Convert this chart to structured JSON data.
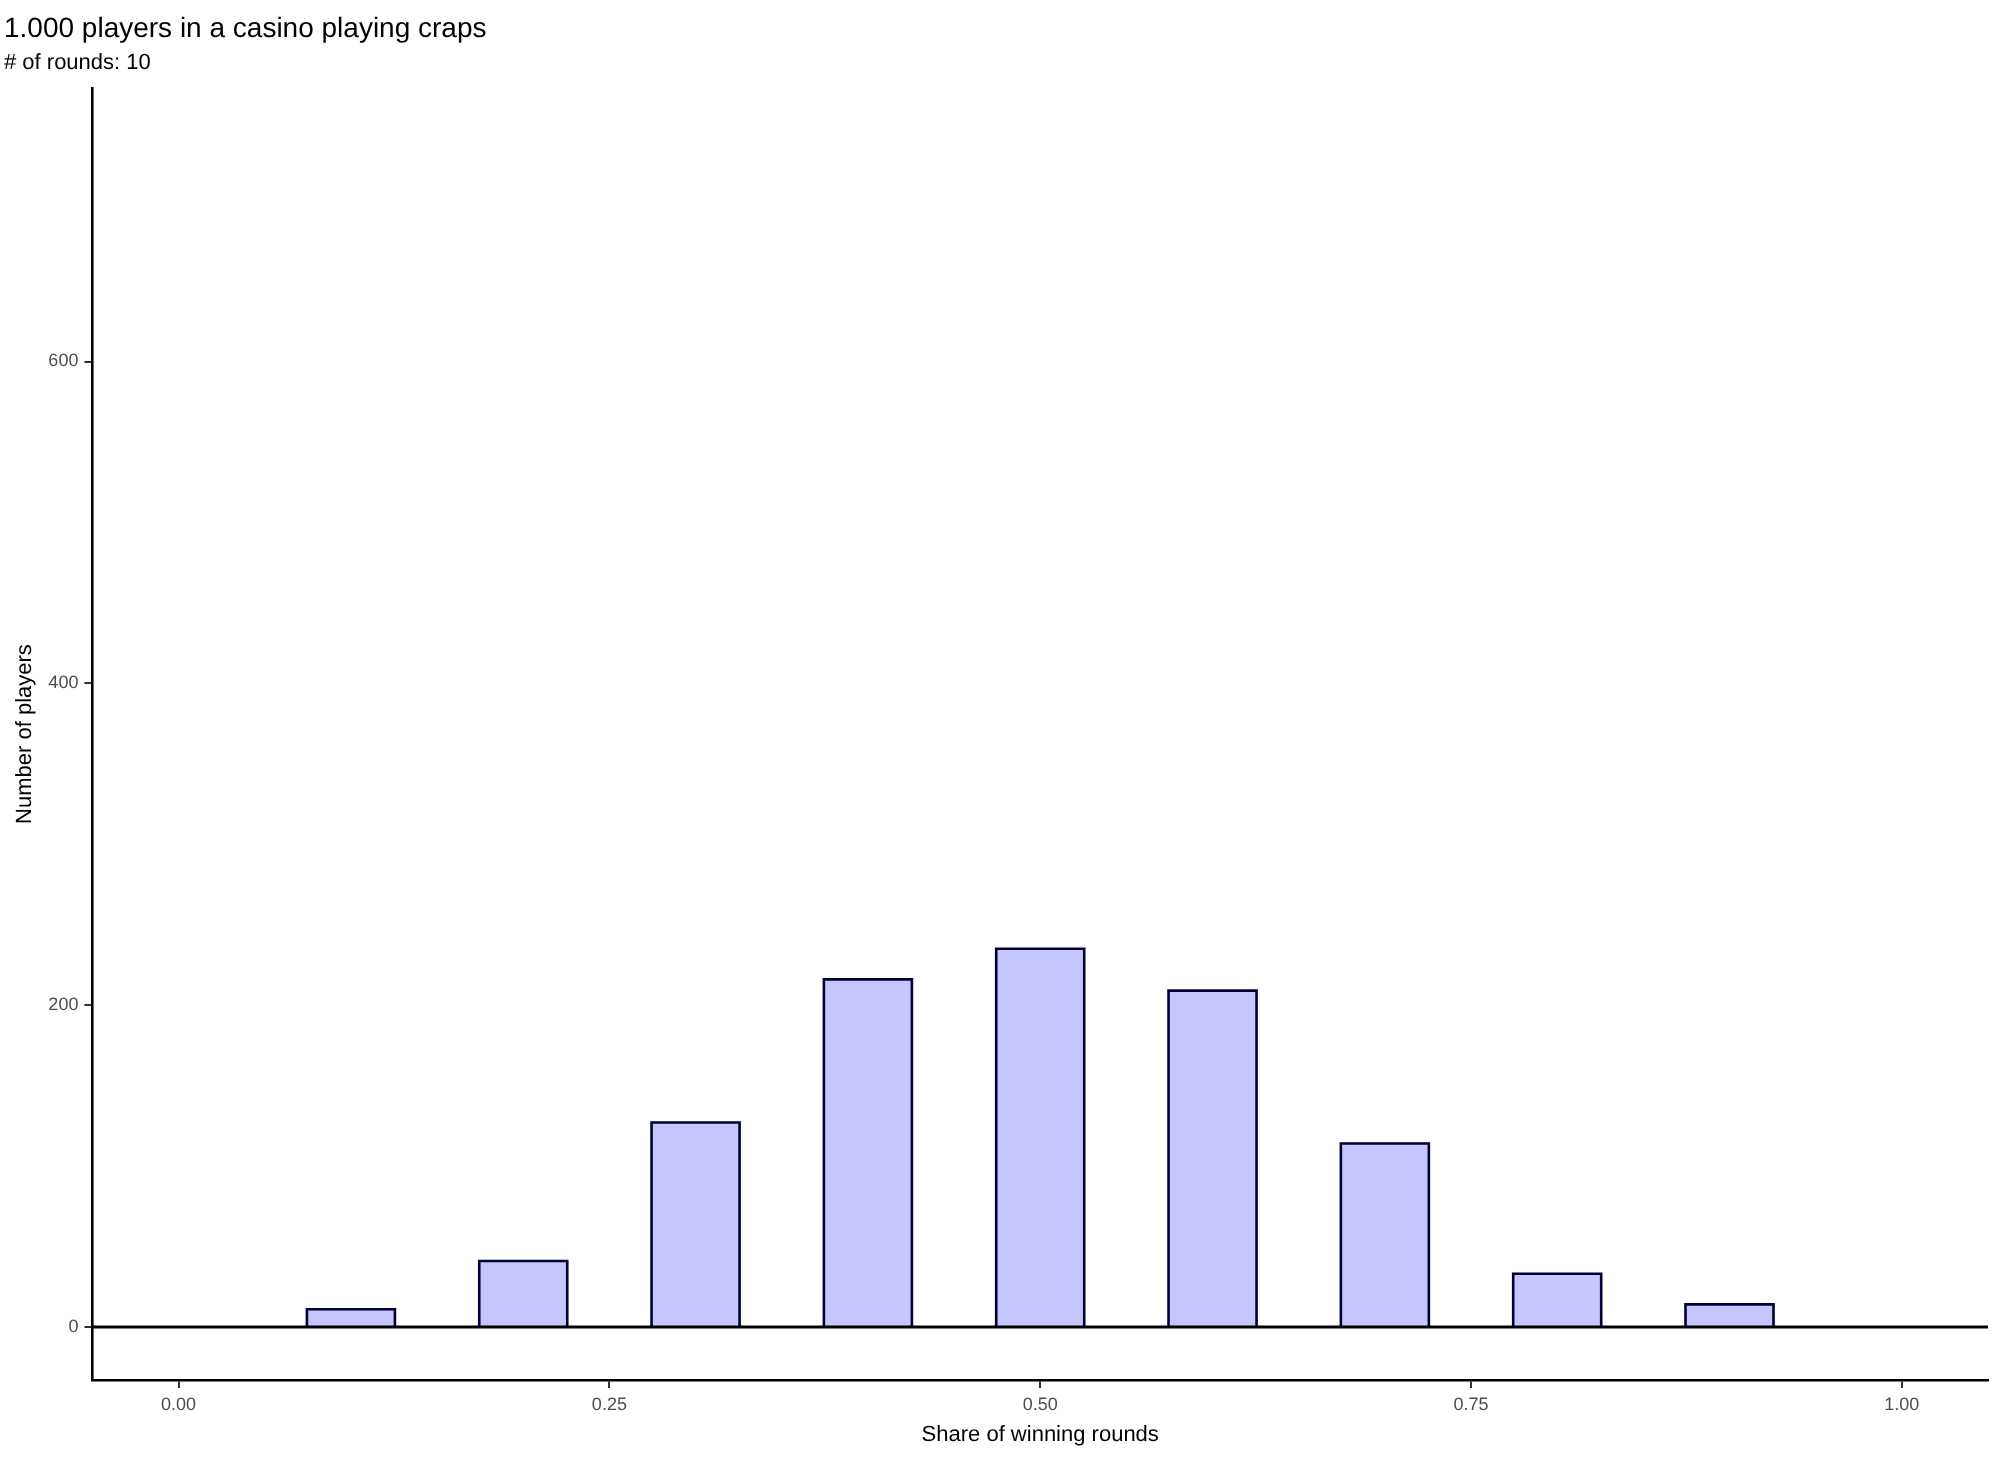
{
  "chart_data": {
    "type": "bar",
    "title": "1.000 players in a casino playing craps",
    "subtitle": "# of rounds: 10",
    "xlabel": "Share of winning rounds",
    "ylabel": "Number of players",
    "x": [
      0.1,
      0.2,
      0.3,
      0.4,
      0.5,
      0.6,
      0.7,
      0.8,
      0.9
    ],
    "series": [
      {
        "color": "#c6c6ff",
        "values": [
          11,
          41,
          127,
          216,
          235,
          209,
          114,
          33,
          14
        ]
      }
    ],
    "xlim": [
      -0.05,
      1.05
    ],
    "xticks": [
      {
        "value": 0,
        "label": "0.00"
      },
      {
        "value": 0.25,
        "label": "0.25"
      },
      {
        "value": 0.5,
        "label": "0.50"
      },
      {
        "value": 0.75,
        "label": "0.75"
      },
      {
        "value": 1,
        "label": "1.00"
      }
    ],
    "ylim": [
      -33,
      770
    ],
    "yticks": [
      0,
      200,
      400,
      600
    ],
    "ref_lines": [
      {
        "axis": "y",
        "value": 0,
        "label": null,
        "color": "#000000"
      }
    ],
    "grid": false,
    "legend": false
  }
}
